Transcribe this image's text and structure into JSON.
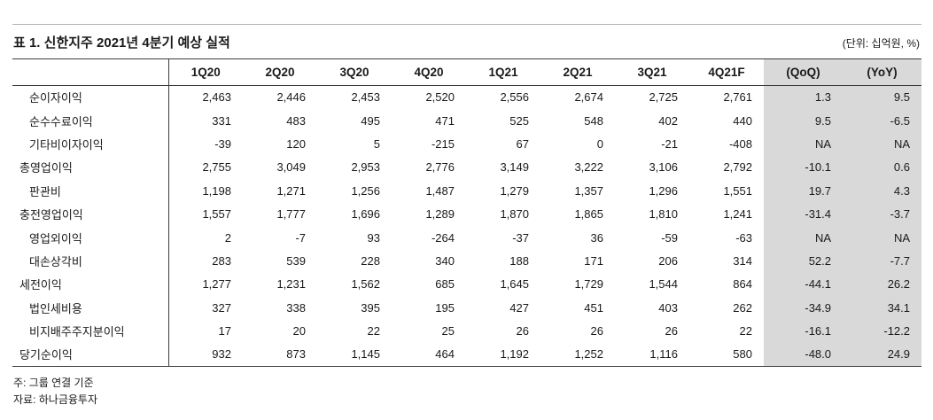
{
  "header": {
    "title": "표 1. 신한지주 2021년 4분기 예상 실적",
    "unit_note": "(단위: 십억원, %)"
  },
  "table": {
    "columns": [
      "",
      "1Q20",
      "2Q20",
      "3Q20",
      "4Q20",
      "1Q21",
      "2Q21",
      "3Q21",
      "4Q21F",
      "(QoQ)",
      "(YoY)"
    ],
    "highlight_color": "#d9d9d9",
    "rows": [
      {
        "label": "순이자이익",
        "indent": true,
        "values": [
          "2,463",
          "2,446",
          "2,453",
          "2,520",
          "2,556",
          "2,674",
          "2,725",
          "2,761",
          "1.3",
          "9.5"
        ]
      },
      {
        "label": "순수수료이익",
        "indent": true,
        "values": [
          "331",
          "483",
          "495",
          "471",
          "525",
          "548",
          "402",
          "440",
          "9.5",
          "-6.5"
        ]
      },
      {
        "label": "기타비이자이익",
        "indent": true,
        "values": [
          "-39",
          "120",
          "5",
          "-215",
          "67",
          "0",
          "-21",
          "-408",
          "NA",
          "NA"
        ]
      },
      {
        "label": "총영업이익",
        "indent": false,
        "values": [
          "2,755",
          "3,049",
          "2,953",
          "2,776",
          "3,149",
          "3,222",
          "3,106",
          "2,792",
          "-10.1",
          "0.6"
        ]
      },
      {
        "label": "판관비",
        "indent": true,
        "values": [
          "1,198",
          "1,271",
          "1,256",
          "1,487",
          "1,279",
          "1,357",
          "1,296",
          "1,551",
          "19.7",
          "4.3"
        ]
      },
      {
        "label": "충전영업이익",
        "indent": false,
        "values": [
          "1,557",
          "1,777",
          "1,696",
          "1,289",
          "1,870",
          "1,865",
          "1,810",
          "1,241",
          "-31.4",
          "-3.7"
        ]
      },
      {
        "label": "영업외이익",
        "indent": true,
        "values": [
          "2",
          "-7",
          "93",
          "-264",
          "-37",
          "36",
          "-59",
          "-63",
          "NA",
          "NA"
        ]
      },
      {
        "label": "대손상각비",
        "indent": true,
        "values": [
          "283",
          "539",
          "228",
          "340",
          "188",
          "171",
          "206",
          "314",
          "52.2",
          "-7.7"
        ]
      },
      {
        "label": "세전이익",
        "indent": false,
        "values": [
          "1,277",
          "1,231",
          "1,562",
          "685",
          "1,645",
          "1,729",
          "1,544",
          "864",
          "-44.1",
          "26.2"
        ]
      },
      {
        "label": "법인세비용",
        "indent": true,
        "values": [
          "327",
          "338",
          "395",
          "195",
          "427",
          "451",
          "403",
          "262",
          "-34.9",
          "34.1"
        ]
      },
      {
        "label": "비지배주주지분이익",
        "indent": true,
        "values": [
          "17",
          "20",
          "22",
          "25",
          "26",
          "26",
          "26",
          "22",
          "-16.1",
          "-12.2"
        ]
      },
      {
        "label": "당기순이익",
        "indent": false,
        "values": [
          "932",
          "873",
          "1,145",
          "464",
          "1,192",
          "1,252",
          "1,116",
          "580",
          "-48.0",
          "24.9"
        ]
      }
    ]
  },
  "footer": {
    "note": "주: 그룹 연결 기준",
    "source": "자료: 하나금융투자"
  }
}
